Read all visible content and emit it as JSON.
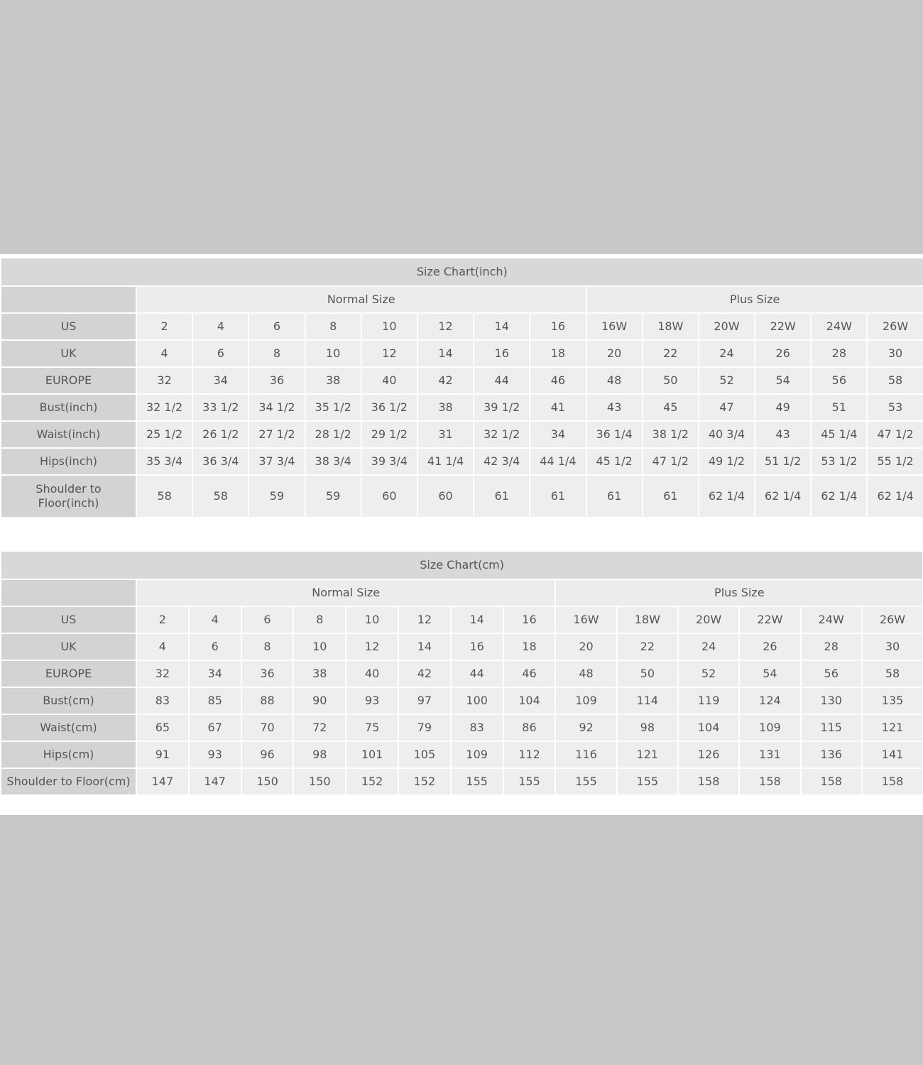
{
  "colors": {
    "background": "#c8c8c8",
    "title_bar": "#d8d8d8",
    "label_cell": "#d3d3d3",
    "value_cell": "#eeeeee",
    "text": "#555555"
  },
  "tables": [
    {
      "title": "Size Chart(inch)",
      "groups": [
        {
          "label": "Normal Size",
          "span": 8
        },
        {
          "label": "Plus Size",
          "span": 6
        }
      ],
      "rows": [
        {
          "label": "US",
          "values": [
            "2",
            "4",
            "6",
            "8",
            "10",
            "12",
            "14",
            "16",
            "16W",
            "18W",
            "20W",
            "22W",
            "24W",
            "26W"
          ]
        },
        {
          "label": "UK",
          "values": [
            "4",
            "6",
            "8",
            "10",
            "12",
            "14",
            "16",
            "18",
            "20",
            "22",
            "24",
            "26",
            "28",
            "30"
          ]
        },
        {
          "label": "EUROPE",
          "values": [
            "32",
            "34",
            "36",
            "38",
            "40",
            "42",
            "44",
            "46",
            "48",
            "50",
            "52",
            "54",
            "56",
            "58"
          ]
        },
        {
          "label": "Bust(inch)",
          "values": [
            "32 1/2",
            "33 1/2",
            "34 1/2",
            "35 1/2",
            "36 1/2",
            "38",
            "39 1/2",
            "41",
            "43",
            "45",
            "47",
            "49",
            "51",
            "53"
          ]
        },
        {
          "label": "Waist(inch)",
          "values": [
            "25 1/2",
            "26 1/2",
            "27 1/2",
            "28 1/2",
            "29 1/2",
            "31",
            "32 1/2",
            "34",
            "36 1/4",
            "38 1/2",
            "40 3/4",
            "43",
            "45 1/4",
            "47 1/2"
          ]
        },
        {
          "label": "Hips(inch)",
          "values": [
            "35 3/4",
            "36 3/4",
            "37 3/4",
            "38 3/4",
            "39 3/4",
            "41 1/4",
            "42 3/4",
            "44 1/4",
            "45 1/2",
            "47 1/2",
            "49 1/2",
            "51 1/2",
            "53 1/2",
            "55 1/2"
          ]
        },
        {
          "label": "Shoulder to Floor(inch)",
          "values": [
            "58",
            "58",
            "59",
            "59",
            "60",
            "60",
            "61",
            "61",
            "61",
            "61",
            "62 1/4",
            "62 1/4",
            "62 1/4",
            "62 1/4"
          ]
        }
      ]
    },
    {
      "title": "Size Chart(cm)",
      "groups": [
        {
          "label": "Normal Size",
          "span": 8
        },
        {
          "label": "Plus Size",
          "span": 6
        }
      ],
      "rows": [
        {
          "label": "US",
          "values": [
            "2",
            "4",
            "6",
            "8",
            "10",
            "12",
            "14",
            "16",
            "16W",
            "18W",
            "20W",
            "22W",
            "24W",
            "26W"
          ]
        },
        {
          "label": "UK",
          "values": [
            "4",
            "6",
            "8",
            "10",
            "12",
            "14",
            "16",
            "18",
            "20",
            "22",
            "24",
            "26",
            "28",
            "30"
          ]
        },
        {
          "label": "EUROPE",
          "values": [
            "32",
            "34",
            "36",
            "38",
            "40",
            "42",
            "44",
            "46",
            "48",
            "50",
            "52",
            "54",
            "56",
            "58"
          ]
        },
        {
          "label": "Bust(cm)",
          "values": [
            "83",
            "85",
            "88",
            "90",
            "93",
            "97",
            "100",
            "104",
            "109",
            "114",
            "119",
            "124",
            "130",
            "135"
          ]
        },
        {
          "label": "Waist(cm)",
          "values": [
            "65",
            "67",
            "70",
            "72",
            "75",
            "79",
            "83",
            "86",
            "92",
            "98",
            "104",
            "109",
            "115",
            "121"
          ]
        },
        {
          "label": "Hips(cm)",
          "values": [
            "91",
            "93",
            "96",
            "98",
            "101",
            "105",
            "109",
            "112",
            "116",
            "121",
            "126",
            "131",
            "136",
            "141"
          ]
        },
        {
          "label": "Shoulder to Floor(cm)",
          "values": [
            "147",
            "147",
            "150",
            "150",
            "152",
            "152",
            "155",
            "155",
            "155",
            "155",
            "158",
            "158",
            "158",
            "158"
          ]
        }
      ]
    }
  ]
}
